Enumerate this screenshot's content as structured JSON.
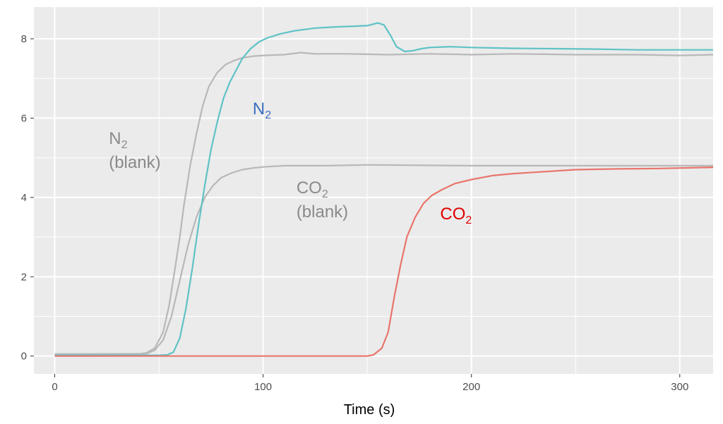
{
  "chart_data": {
    "type": "line",
    "xlabel": "Time (s)",
    "ylabel": "",
    "xlim": [
      -10,
      316
    ],
    "ylim": [
      -0.45,
      8.8
    ],
    "x_ticks": [
      0,
      100,
      200,
      300
    ],
    "y_ticks": [
      0,
      2,
      4,
      6,
      8
    ],
    "grid": true,
    "legend": "none",
    "colors": {
      "panel_background": "#ebebeb",
      "grid": "#ffffff",
      "n2": "#5fc2c6",
      "co2": "#e8756c",
      "blank": "#b8b8b8",
      "n2_label": "#3a6fc0",
      "co2_label": "#e00000",
      "blank_label": "#8a8a8a"
    },
    "series": [
      {
        "color_key": "blank",
        "points": [
          [
            0,
            0.05
          ],
          [
            40,
            0.05
          ],
          [
            44,
            0.08
          ],
          [
            48,
            0.2
          ],
          [
            52,
            0.6
          ],
          [
            55,
            1.3
          ],
          [
            58,
            2.3
          ],
          [
            60,
            3.0
          ],
          [
            62,
            3.8
          ],
          [
            65,
            4.8
          ],
          [
            68,
            5.6
          ],
          [
            71,
            6.3
          ],
          [
            74,
            6.8
          ],
          [
            78,
            7.15
          ],
          [
            82,
            7.35
          ],
          [
            86,
            7.45
          ],
          [
            90,
            7.52
          ],
          [
            95,
            7.56
          ],
          [
            100,
            7.58
          ],
          [
            110,
            7.6
          ],
          [
            118,
            7.65
          ],
          [
            125,
            7.62
          ],
          [
            140,
            7.62
          ],
          [
            160,
            7.6
          ],
          [
            180,
            7.62
          ],
          [
            200,
            7.6
          ],
          [
            220,
            7.62
          ],
          [
            250,
            7.6
          ],
          [
            280,
            7.6
          ],
          [
            300,
            7.58
          ],
          [
            316,
            7.6
          ]
        ]
      },
      {
        "color_key": "blank",
        "points": [
          [
            0,
            0.05
          ],
          [
            44,
            0.06
          ],
          [
            48,
            0.15
          ],
          [
            52,
            0.4
          ],
          [
            56,
            1.0
          ],
          [
            60,
            1.9
          ],
          [
            64,
            2.8
          ],
          [
            68,
            3.5
          ],
          [
            72,
            4.0
          ],
          [
            76,
            4.3
          ],
          [
            80,
            4.5
          ],
          [
            85,
            4.62
          ],
          [
            90,
            4.7
          ],
          [
            95,
            4.74
          ],
          [
            100,
            4.77
          ],
          [
            110,
            4.8
          ],
          [
            130,
            4.8
          ],
          [
            150,
            4.82
          ],
          [
            200,
            4.8
          ],
          [
            250,
            4.8
          ],
          [
            300,
            4.8
          ],
          [
            316,
            4.8
          ]
        ]
      },
      {
        "color_key": "n2",
        "points": [
          [
            0,
            0.02
          ],
          [
            50,
            0.02
          ],
          [
            54,
            0.03
          ],
          [
            57,
            0.1
          ],
          [
            60,
            0.45
          ],
          [
            63,
            1.2
          ],
          [
            66,
            2.2
          ],
          [
            69,
            3.3
          ],
          [
            72,
            4.3
          ],
          [
            75,
            5.2
          ],
          [
            78,
            5.9
          ],
          [
            81,
            6.5
          ],
          [
            84,
            6.9
          ],
          [
            87,
            7.2
          ],
          [
            90,
            7.5
          ],
          [
            94,
            7.75
          ],
          [
            98,
            7.92
          ],
          [
            102,
            8.02
          ],
          [
            108,
            8.12
          ],
          [
            115,
            8.2
          ],
          [
            125,
            8.27
          ],
          [
            135,
            8.3
          ],
          [
            145,
            8.32
          ],
          [
            150,
            8.33
          ],
          [
            155,
            8.4
          ],
          [
            158,
            8.35
          ],
          [
            161,
            8.1
          ],
          [
            164,
            7.8
          ],
          [
            168,
            7.68
          ],
          [
            172,
            7.7
          ],
          [
            176,
            7.75
          ],
          [
            180,
            7.78
          ],
          [
            190,
            7.8
          ],
          [
            200,
            7.78
          ],
          [
            220,
            7.76
          ],
          [
            240,
            7.75
          ],
          [
            260,
            7.74
          ],
          [
            280,
            7.72
          ],
          [
            300,
            7.72
          ],
          [
            316,
            7.72
          ]
        ]
      },
      {
        "color_key": "co2",
        "points": [
          [
            0,
            0.0
          ],
          [
            40,
            0.0
          ],
          [
            150,
            0.0
          ],
          [
            153,
            0.03
          ],
          [
            157,
            0.2
          ],
          [
            160,
            0.6
          ],
          [
            163,
            1.5
          ],
          [
            166,
            2.3
          ],
          [
            169,
            3.0
          ],
          [
            173,
            3.5
          ],
          [
            177,
            3.85
          ],
          [
            181,
            4.05
          ],
          [
            186,
            4.2
          ],
          [
            192,
            4.35
          ],
          [
            200,
            4.45
          ],
          [
            210,
            4.55
          ],
          [
            220,
            4.6
          ],
          [
            235,
            4.65
          ],
          [
            250,
            4.7
          ],
          [
            270,
            4.72
          ],
          [
            290,
            4.73
          ],
          [
            316,
            4.76
          ]
        ]
      }
    ],
    "annotations": [
      {
        "main": "N",
        "sub": "2",
        "line2": "(blank)",
        "color_key": "blank_label",
        "x": 26,
        "y": 5.35
      },
      {
        "main": "N",
        "sub": "2",
        "line2": "",
        "color_key": "n2_label",
        "x": 95,
        "y": 6.1
      },
      {
        "main": "CO",
        "sub": "2",
        "line2": "(blank)",
        "color_key": "blank_label",
        "x": 116,
        "y": 4.1
      },
      {
        "main": "CO",
        "sub": "2",
        "line2": "",
        "color_key": "co2_label",
        "x": 185,
        "y": 3.45
      }
    ]
  }
}
